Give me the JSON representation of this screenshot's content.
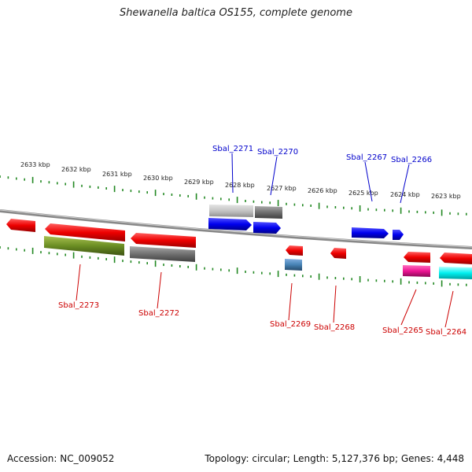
{
  "title": "Shewanella baltica OS155, complete genome",
  "accession": "Accession: NC_009052",
  "topology": "Topology: circular; Length: 5,127,376 bp; Genes: 4,448",
  "kbp_labels": [
    "2633 kbp",
    "2632 kbp",
    "2631 kbp",
    "2630 kbp",
    "2629 kbp",
    "2628 kbp",
    "2627 kbp",
    "2626 kbp",
    "2625 kbp",
    "2624 kbp",
    "2623 kbp"
  ],
  "genes_top": [
    "Sbal_2271",
    "Sbal_2270",
    "Sbal_2267",
    "Sbal_2266"
  ],
  "genes_bottom": [
    "Sbal_2273",
    "Sbal_2272",
    "Sbal_2269",
    "Sbal_2268",
    "Sbal_2265",
    "Sbal_2264"
  ],
  "colors": {
    "top_label": "#0000cc",
    "bottom_label": "#cc0000",
    "backbone": "#888888",
    "ticks": "#228822"
  }
}
